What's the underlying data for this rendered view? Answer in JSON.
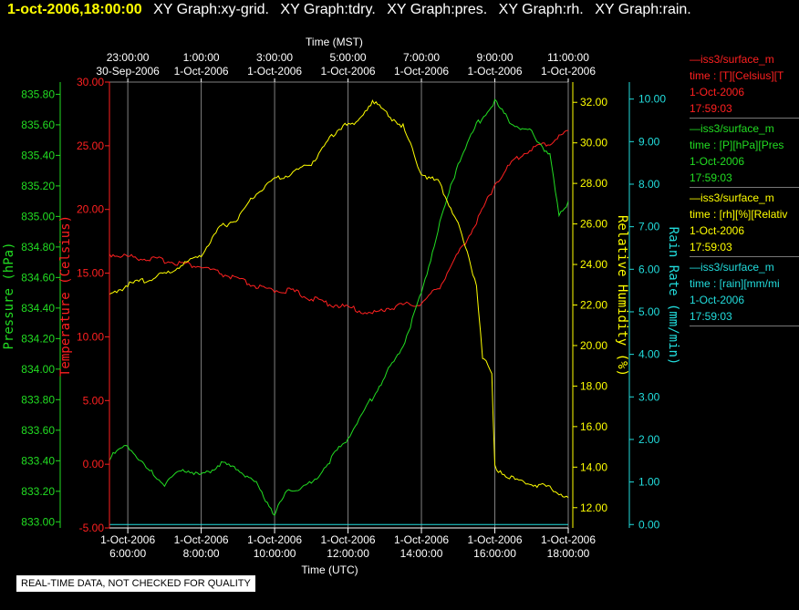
{
  "header": {
    "timestamp": "1-oct-2006,18:00:00",
    "graphs": [
      "XY Graph:xy-grid.",
      "XY Graph:tdry.",
      "XY Graph:pres.",
      "XY Graph:rh.",
      "XY Graph:rain."
    ]
  },
  "legend": [
    {
      "name": "iss3/surface_m",
      "fields": "time : [T][Celsius][T",
      "date": "1-Oct-2006",
      "time": "17:59:03",
      "color": "#ff2020"
    },
    {
      "name": "iss3/surface_m",
      "fields": "time : [P][hPa][Pres",
      "date": "1-Oct-2006",
      "time": "17:59:03",
      "color": "#22dd22"
    },
    {
      "name": "iss3/surface_m",
      "fields": "time : [rh][%][Relativ",
      "date": "1-Oct-2006",
      "time": "17:59:03",
      "color": "#ffff00"
    },
    {
      "name": "iss3/surface_m",
      "fields": "time : [rain][mm/mi",
      "date": "1-Oct-2006",
      "time": "17:59:03",
      "color": "#22dddd"
    }
  ],
  "footer_note": "REAL-TIME DATA, NOT CHECKED FOR QUALITY",
  "chart_data": {
    "type": "line",
    "title": "",
    "grid": true,
    "x_bottom": {
      "label": "Time (UTC)",
      "range": [
        "2006-10-01T05:30",
        "2006-10-01T18:00"
      ],
      "ticks": [
        {
          "t": "2006-10-01T06:00",
          "line1": "1-Oct-2006",
          "line2": "6:00:00"
        },
        {
          "t": "2006-10-01T08:00",
          "line1": "1-Oct-2006",
          "line2": "8:00:00"
        },
        {
          "t": "2006-10-01T10:00",
          "line1": "1-Oct-2006",
          "line2": "10:00:00"
        },
        {
          "t": "2006-10-01T12:00",
          "line1": "1-Oct-2006",
          "line2": "12:00:00"
        },
        {
          "t": "2006-10-01T14:00",
          "line1": "1-Oct-2006",
          "line2": "14:00:00"
        },
        {
          "t": "2006-10-01T16:00",
          "line1": "1-Oct-2006",
          "line2": "16:00:00"
        },
        {
          "t": "2006-10-01T18:00",
          "line1": "1-Oct-2006",
          "line2": "18:00:00"
        }
      ]
    },
    "x_top": {
      "label": "Time (MST)",
      "ticks": [
        {
          "t": "2006-10-01T06:00",
          "line1": "23:00:00",
          "line2": "30-Sep-2006"
        },
        {
          "t": "2006-10-01T08:00",
          "line1": "1:00:00",
          "line2": "1-Oct-2006"
        },
        {
          "t": "2006-10-01T10:00",
          "line1": "3:00:00",
          "line2": "1-Oct-2006"
        },
        {
          "t": "2006-10-01T12:00",
          "line1": "5:00:00",
          "line2": "1-Oct-2006"
        },
        {
          "t": "2006-10-01T14:00",
          "line1": "7:00:00",
          "line2": "1-Oct-2006"
        },
        {
          "t": "2006-10-01T16:00",
          "line1": "9:00:00",
          "line2": "1-Oct-2006"
        },
        {
          "t": "2006-10-01T18:00",
          "line1": "11:00:00",
          "line2": "1-Oct-2006"
        }
      ]
    },
    "axes": [
      {
        "id": "pres",
        "label": "Pressure (hPa)",
        "color": "#22dd22",
        "side": "left",
        "range": [
          832.96,
          835.88
        ],
        "ticks": [
          "833.00",
          "833.20",
          "833.40",
          "833.60",
          "833.80",
          "834.00",
          "834.20",
          "834.40",
          "834.60",
          "834.80",
          "835.00",
          "835.20",
          "835.40",
          "835.60",
          "835.80"
        ]
      },
      {
        "id": "tdry",
        "label": "Temperature (Celsius)",
        "color": "#ff2020",
        "side": "left",
        "range": [
          -5,
          30
        ],
        "ticks": [
          "-5.00",
          "0.00",
          "5.00",
          "10.00",
          "15.00",
          "20.00",
          "25.00",
          "30.00"
        ]
      },
      {
        "id": "rh",
        "label": "Relative Humidity (%)",
        "color": "#ffff00",
        "side": "right",
        "range": [
          11.0,
          33.0
        ],
        "ticks": [
          "12.00",
          "14.00",
          "16.00",
          "18.00",
          "20.00",
          "22.00",
          "24.00",
          "26.00",
          "28.00",
          "30.00",
          "32.00"
        ]
      },
      {
        "id": "rain",
        "label": "Rain Rate (mm/min)",
        "color": "#22dddd",
        "side": "right",
        "range": [
          -0.08,
          10.4
        ],
        "ticks": [
          "0.00",
          "1.00",
          "2.00",
          "3.00",
          "4.00",
          "5.00",
          "6.00",
          "7.00",
          "8.00",
          "9.00",
          "10.00"
        ]
      }
    ],
    "series": [
      {
        "axis": "tdry",
        "color": "#ff2020",
        "x": [
          "2006-10-01T05:30",
          "2006-10-01T06:00",
          "2006-10-01T07:00",
          "2006-10-01T08:00",
          "2006-10-01T09:00",
          "2006-10-01T09:45",
          "2006-10-01T10:30",
          "2006-10-01T11:00",
          "2006-10-01T11:30",
          "2006-10-01T12:00",
          "2006-10-01T12:40",
          "2006-10-01T13:00",
          "2006-10-01T13:30",
          "2006-10-01T14:00",
          "2006-10-01T14:30",
          "2006-10-01T15:00",
          "2006-10-01T15:30",
          "2006-10-01T16:00",
          "2006-10-01T16:30",
          "2006-10-01T17:00",
          "2006-10-01T17:30",
          "2006-10-01T18:00"
        ],
        "values": [
          16.5,
          16.3,
          16.0,
          15.5,
          14.5,
          13.7,
          13.6,
          13.0,
          12.6,
          12.3,
          11.8,
          12.2,
          12.5,
          12.6,
          14.0,
          16.5,
          19.0,
          22.0,
          23.8,
          24.8,
          25.2,
          26.2
        ]
      },
      {
        "axis": "pres",
        "color": "#22dd22",
        "x": [
          "2006-10-01T05:30",
          "2006-10-01T06:00",
          "2006-10-01T06:30",
          "2006-10-01T07:00",
          "2006-10-01T07:30",
          "2006-10-01T08:00",
          "2006-10-01T08:30",
          "2006-10-01T09:00",
          "2006-10-01T09:30",
          "2006-10-01T10:00",
          "2006-10-01T10:20",
          "2006-10-01T11:00",
          "2006-10-01T11:30",
          "2006-10-01T12:00",
          "2006-10-01T12:30",
          "2006-10-01T13:00",
          "2006-10-01T13:30",
          "2006-10-01T14:00",
          "2006-10-01T14:30",
          "2006-10-01T15:00",
          "2006-10-01T15:30",
          "2006-10-01T16:00",
          "2006-10-01T16:30",
          "2006-10-01T17:00",
          "2006-10-01T17:30",
          "2006-10-01T17:45",
          "2006-10-01T18:00"
        ],
        "values": [
          833.42,
          833.5,
          833.35,
          833.25,
          833.35,
          833.3,
          833.38,
          833.35,
          833.25,
          833.05,
          833.2,
          833.25,
          833.4,
          833.55,
          833.75,
          833.95,
          834.15,
          834.5,
          834.95,
          835.35,
          835.6,
          835.75,
          835.6,
          835.55,
          835.4,
          835.0,
          835.1
        ]
      },
      {
        "axis": "rh",
        "color": "#ffff00",
        "x": [
          "2006-10-01T05:30",
          "2006-10-01T06:00",
          "2006-10-01T07:00",
          "2006-10-01T07:30",
          "2006-10-01T08:00",
          "2006-10-01T08:30",
          "2006-10-01T09:00",
          "2006-10-01T09:30",
          "2006-10-01T10:00",
          "2006-10-01T10:30",
          "2006-10-01T11:00",
          "2006-10-01T11:30",
          "2006-10-01T11:55",
          "2006-10-01T12:10",
          "2006-10-01T12:40",
          "2006-10-01T13:00",
          "2006-10-01T13:30",
          "2006-10-01T14:00",
          "2006-10-01T14:30",
          "2006-10-01T15:00",
          "2006-10-01T15:30",
          "2006-10-01T15:40",
          "2006-10-01T15:55",
          "2006-10-01T16:00",
          "2006-10-01T16:30",
          "2006-10-01T17:00",
          "2006-10-01T17:30",
          "2006-10-01T18:00"
        ],
        "values": [
          22.5,
          23.0,
          23.5,
          24.0,
          24.5,
          25.8,
          26.3,
          27.5,
          28.2,
          28.5,
          29.0,
          30.2,
          31.0,
          30.8,
          32.1,
          31.5,
          30.8,
          28.5,
          28.0,
          26.0,
          23.0,
          19.5,
          18.5,
          14.0,
          13.4,
          13.2,
          13.0,
          12.5
        ]
      },
      {
        "axis": "rain",
        "color": "#22dddd",
        "x": [
          "2006-10-01T05:30",
          "2006-10-01T18:00"
        ],
        "values": [
          0,
          0
        ]
      }
    ]
  }
}
